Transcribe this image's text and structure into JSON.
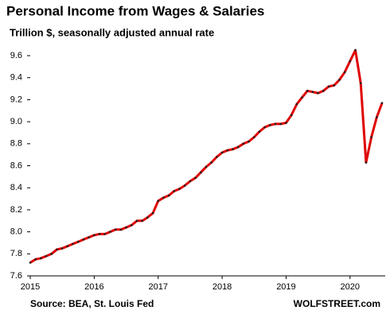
{
  "chart_data": {
    "type": "line",
    "title": "Personal Income from Wages & Salaries",
    "subtitle": "Trillion $, seasonally adjusted annual rate",
    "source": "Source: BEA, St. Louis Fed",
    "credit": "WOLFSTREET.com",
    "color": "#e00000",
    "marker_color": "#222222",
    "x": [
      2015,
      2015.083,
      2015.167,
      2015.25,
      2015.333,
      2015.417,
      2015.5,
      2015.583,
      2015.667,
      2015.75,
      2015.833,
      2015.917,
      2016,
      2016.083,
      2016.167,
      2016.25,
      2016.333,
      2016.417,
      2016.5,
      2016.583,
      2016.667,
      2016.75,
      2016.833,
      2016.917,
      2017,
      2017.083,
      2017.167,
      2017.25,
      2017.333,
      2017.417,
      2017.5,
      2017.583,
      2017.667,
      2017.75,
      2017.833,
      2017.917,
      2018,
      2018.083,
      2018.167,
      2018.25,
      2018.333,
      2018.417,
      2018.5,
      2018.583,
      2018.667,
      2018.75,
      2018.833,
      2018.917,
      2019,
      2019.083,
      2019.167,
      2019.25,
      2019.333,
      2019.417,
      2019.5,
      2019.583,
      2019.667,
      2019.75,
      2019.833,
      2019.917,
      2020,
      2020.083,
      2020.167,
      2020.25,
      2020.333,
      2020.417,
      2020.5
    ],
    "values": [
      7.72,
      7.75,
      7.76,
      7.78,
      7.8,
      7.84,
      7.85,
      7.87,
      7.89,
      7.91,
      7.93,
      7.95,
      7.97,
      7.98,
      7.98,
      8.0,
      8.02,
      8.02,
      8.04,
      8.06,
      8.1,
      8.1,
      8.13,
      8.17,
      8.28,
      8.31,
      8.33,
      8.37,
      8.39,
      8.42,
      8.46,
      8.49,
      8.54,
      8.59,
      8.63,
      8.68,
      8.72,
      8.74,
      8.75,
      8.77,
      8.8,
      8.82,
      8.86,
      8.91,
      8.95,
      8.97,
      8.98,
      8.98,
      8.99,
      9.06,
      9.16,
      9.22,
      9.28,
      9.27,
      9.26,
      9.28,
      9.32,
      9.33,
      9.38,
      9.45,
      9.55,
      9.65,
      9.35,
      8.63,
      8.86,
      9.04,
      9.17
    ],
    "xlim": [
      2015,
      2020.55
    ],
    "xticks": [
      2015,
      2016,
      2017,
      2018,
      2019,
      2020
    ],
    "ylim": [
      7.6,
      9.72
    ],
    "yticks": [
      7.6,
      7.8,
      {
        "value": 8,
        "label": "8.0"
      },
      8.2,
      8.4,
      8.6,
      8.8,
      {
        "value": 9,
        "label": "9.0"
      },
      9.2,
      9.4,
      9.6
    ]
  }
}
